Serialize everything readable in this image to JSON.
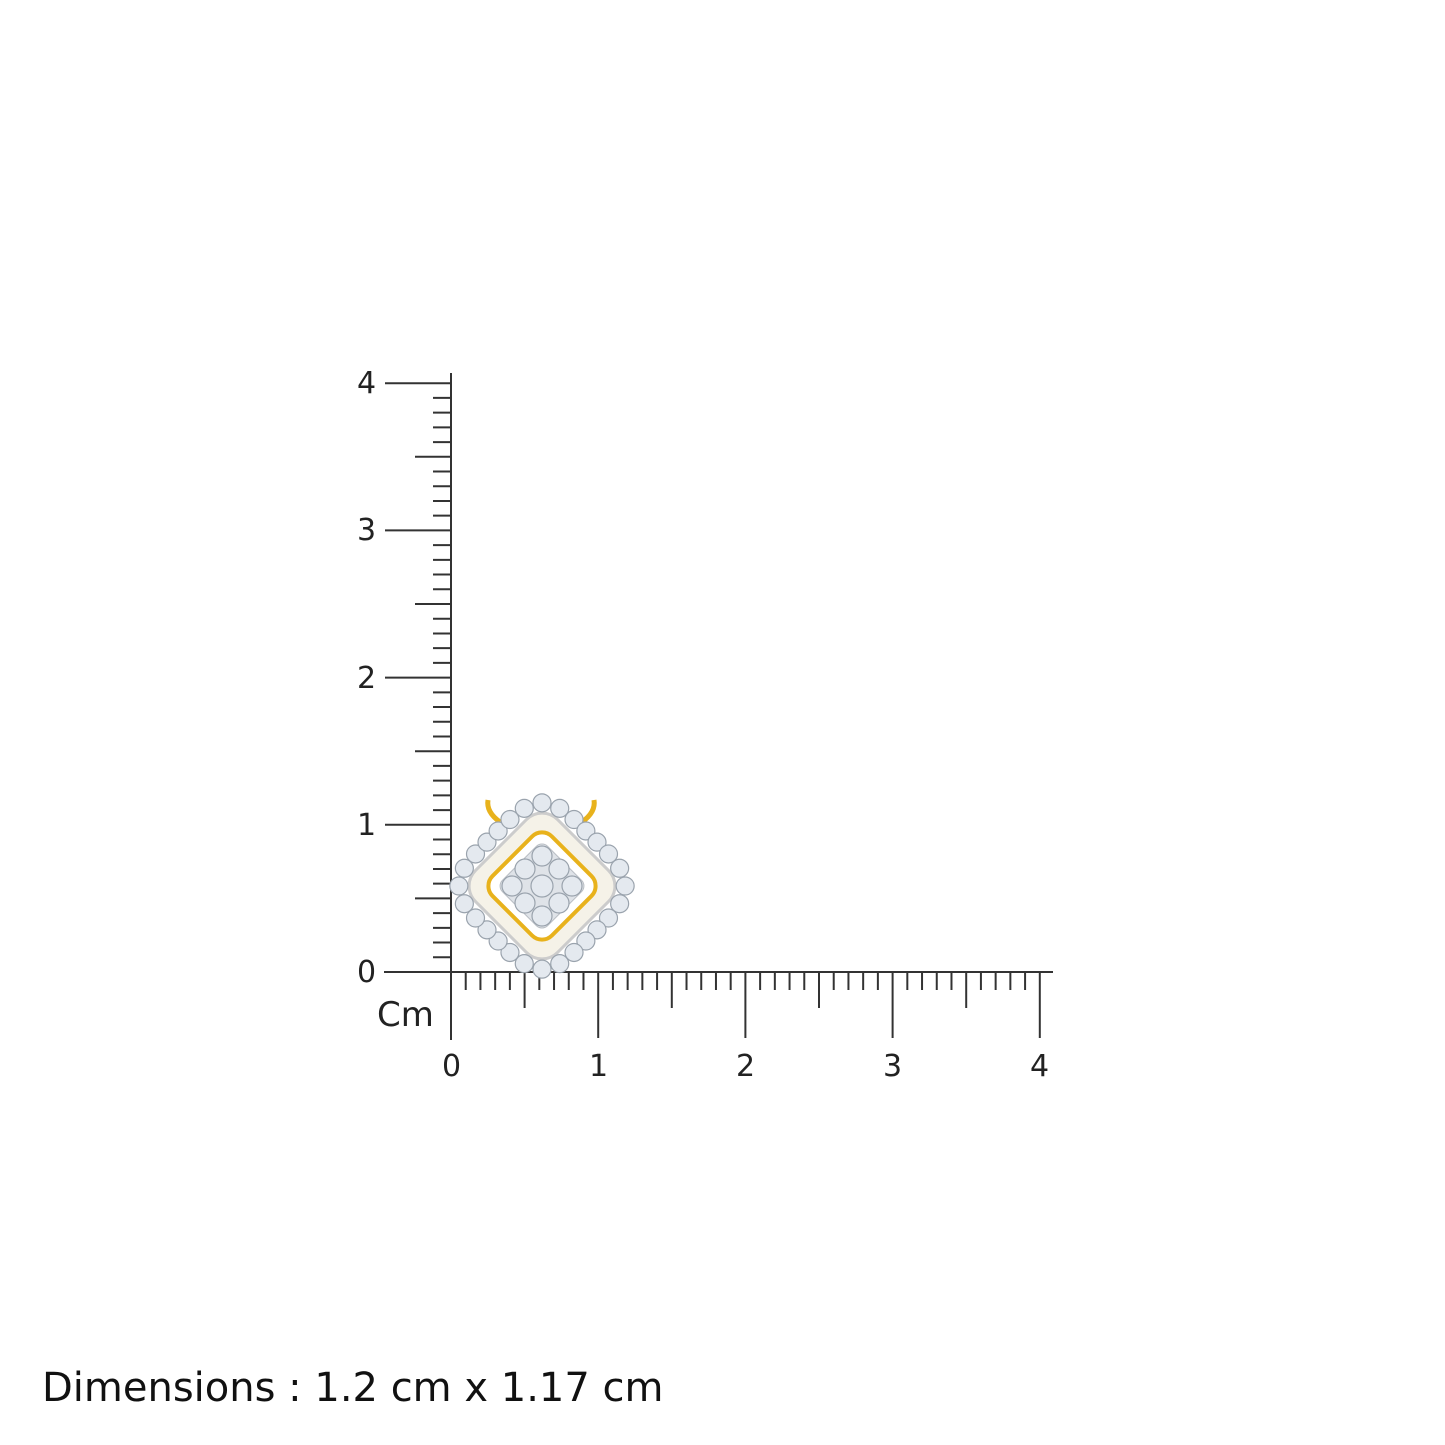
{
  "ruler": {
    "unit_label": "Cm",
    "x_ticks": [
      "0",
      "1",
      "2",
      "3",
      "4"
    ],
    "y_ticks": [
      "0",
      "1",
      "2",
      "3",
      "4"
    ],
    "range_cm": [
      0,
      4
    ],
    "minor_step_cm": 0.1
  },
  "product": {
    "type": "diamond pendant",
    "metal_color": "#e8b21c",
    "stone_color": "#e4e9ef"
  },
  "dimensions_text": "Dimensions : 1.2 cm x 1.17 cm"
}
